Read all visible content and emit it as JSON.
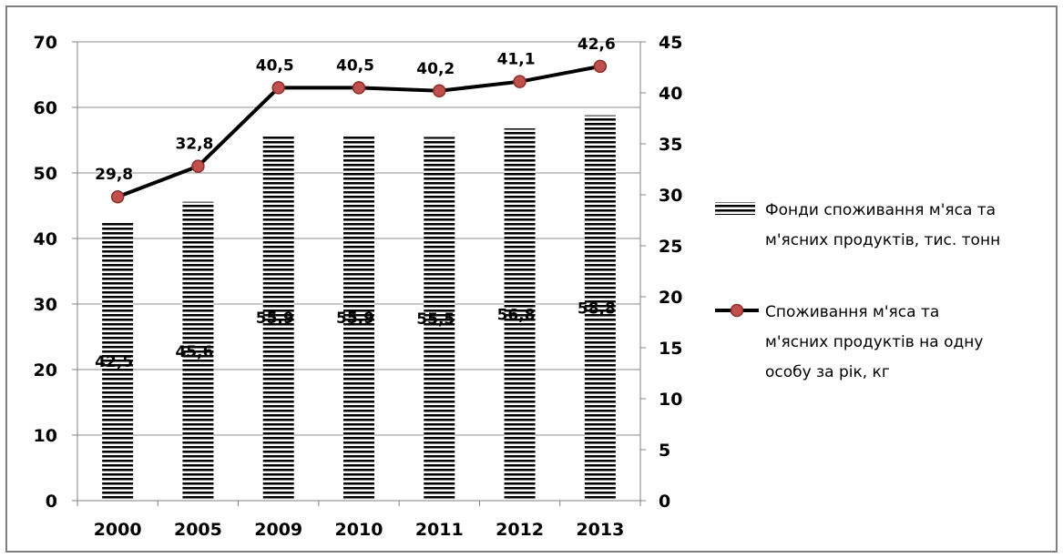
{
  "chart_data": {
    "type": "bar",
    "categories": [
      "2000",
      "2005",
      "2009",
      "2010",
      "2011",
      "2012",
      "2013"
    ],
    "series": [
      {
        "name": "Фонди споживання м'яса та м'ясних продуктів, тис. тонн",
        "type": "bar",
        "axis": "left",
        "values": [
          42.5,
          45.6,
          55.9,
          55.9,
          55.5,
          56.8,
          58.8
        ],
        "labels": [
          "42,5",
          "45,6",
          "55,9",
          "55,9",
          "55,5",
          "56,8",
          "58,8"
        ]
      },
      {
        "name": "Споживання м'яса та м'ясних продуктів на одну особу за рік, кг",
        "type": "line",
        "axis": "right",
        "values": [
          29.8,
          32.8,
          40.5,
          40.5,
          40.2,
          41.1,
          42.6
        ],
        "labels": [
          "29,8",
          "32,8",
          "40,5",
          "40,5",
          "40,2",
          "41,1",
          "42,6"
        ]
      }
    ],
    "ylim_left": [
      0,
      70
    ],
    "yticks_left": [
      "0",
      "10",
      "20",
      "30",
      "40",
      "50",
      "60",
      "70"
    ],
    "ylim_right": [
      0,
      45
    ],
    "yticks_right": [
      "0",
      "5",
      "10",
      "15",
      "20",
      "25",
      "30",
      "35",
      "40",
      "45"
    ],
    "grid": true,
    "legend": "right",
    "legend_lines": [
      [
        "Фонди споживання м'яса та",
        "м'ясних продуктів, тис. тонн"
      ],
      [
        "Споживання м'яса та",
        "м'ясних продуктів на одну",
        "особу за рік, кг"
      ]
    ],
    "colors": {
      "line": "#000000",
      "marker_fill": "#c0504d",
      "marker_edge": "#8b2e2b",
      "bar_stripe": "#000000"
    }
  }
}
